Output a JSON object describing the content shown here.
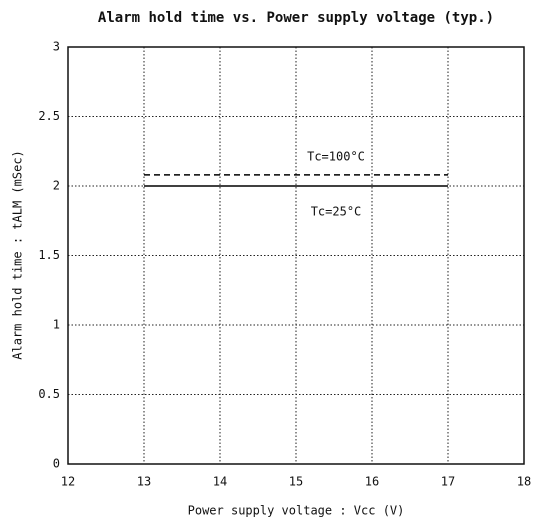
{
  "chart_data": {
    "type": "line",
    "title": "Alarm hold time vs. Power supply voltage (typ.)",
    "xlabel": "Power supply voltage : Vcc (V)",
    "ylabel": "Alarm hold time : tALM (mSec)",
    "x": [
      13,
      17
    ],
    "series": [
      {
        "name": "Tc=100°C",
        "color": "#000000",
        "dash": "dashed",
        "values": [
          2.08,
          2.08
        ]
      },
      {
        "name": "Tc=25°C",
        "color": "#000000",
        "dash": "solid",
        "values": [
          2,
          2
        ]
      }
    ],
    "xlim": [
      12,
      18
    ],
    "xticks": [
      12,
      13,
      14,
      15,
      16,
      17,
      18
    ],
    "ylim": [
      0,
      3
    ],
    "yticks": [
      0,
      0.5,
      1,
      1.5,
      2,
      2.5,
      3
    ],
    "grid": true
  }
}
